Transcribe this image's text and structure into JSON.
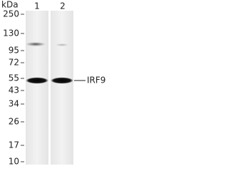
{
  "unit": "kDa",
  "lanes": [
    "1",
    "2"
  ],
  "markers": [
    "250",
    "130",
    "95",
    "72",
    "55",
    "43",
    "34",
    "26",
    "17",
    "10"
  ],
  "target": "IRF9"
}
